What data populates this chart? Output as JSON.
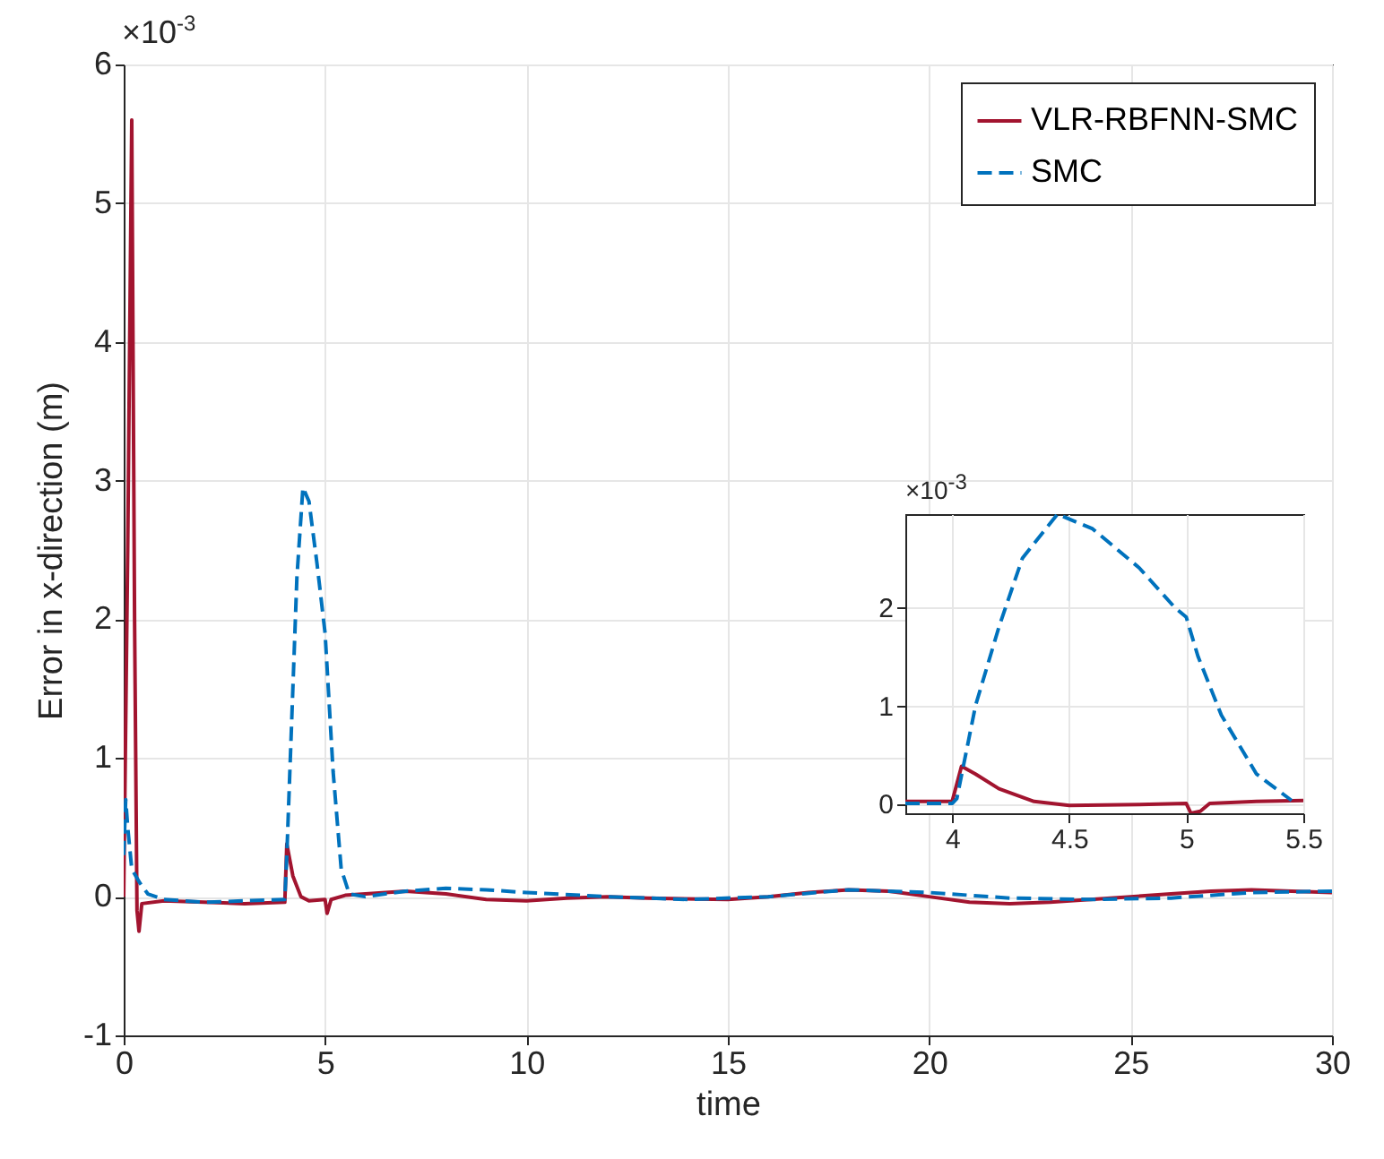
{
  "chart_data": [
    {
      "type": "line",
      "xlabel": "time",
      "ylabel": "Error in x-direction (m)",
      "annotations": [
        "×10$^{-3}$"
      ],
      "xlim": [
        0,
        30
      ],
      "xticks": [
        0,
        5,
        10,
        15,
        20,
        25,
        30
      ],
      "ylim": [
        -1,
        6
      ],
      "yticks": [
        -1,
        0,
        1,
        2,
        3,
        4,
        5,
        6
      ],
      "grid": true,
      "legend": "top right",
      "series": [
        {
          "name": "VLR-RBFNN-SMC",
          "color": "#a2142f",
          "line_style": "solid",
          "x": [
            0,
            0.1,
            0.2,
            0.27,
            0.33,
            0.38,
            0.45,
            1,
            2,
            3,
            4,
            4.05,
            4.2,
            4.4,
            4.6,
            5,
            5.05,
            5.15,
            5.5,
            6,
            7,
            8,
            9,
            10,
            11,
            12,
            13,
            15,
            16,
            17,
            18,
            19,
            20,
            21,
            22,
            23,
            24,
            25,
            26,
            27,
            28,
            29,
            30
          ],
          "values": [
            0,
            2.5,
            5.6,
            2,
            -0.1,
            -0.25,
            -0.05,
            -0.03,
            -0.04,
            -0.05,
            -0.04,
            0.38,
            0.15,
            0,
            -0.03,
            -0.02,
            -0.12,
            -0.02,
            0.01,
            0.02,
            0.04,
            0.02,
            -0.02,
            -0.03,
            -0.01,
            0,
            -0.01,
            -0.02,
            0,
            0.03,
            0.05,
            0.04,
            0,
            -0.04,
            -0.05,
            -0.04,
            -0.02,
            0,
            0.02,
            0.04,
            0.05,
            0.04,
            0.03
          ]
        },
        {
          "name": "SMC",
          "color": "#0072bd",
          "line_style": "dashed",
          "x": [
            0,
            0.05,
            0.1,
            0.2,
            0.4,
            0.6,
            1,
            2,
            4,
            4.05,
            4.2,
            4.3,
            4.45,
            4.6,
            4.8,
            5,
            5.2,
            5.4,
            5.6,
            6,
            7,
            8,
            9,
            10,
            12,
            14,
            16,
            18,
            20,
            22,
            24,
            26,
            28,
            30
          ],
          "values": [
            0.3,
            0.7,
            0.5,
            0.2,
            0.1,
            0.02,
            -0.02,
            -0.04,
            -0.02,
            0.3,
            1.5,
            2.3,
            2.95,
            2.85,
            2.4,
            1.9,
            0.9,
            0.2,
            0.02,
            0,
            0.04,
            0.06,
            0.05,
            0.03,
            0,
            -0.02,
            0,
            0.05,
            0.03,
            -0.01,
            -0.02,
            -0.01,
            0.03,
            0.04
          ]
        }
      ]
    },
    {
      "type": "line",
      "annotations": [
        "×10$^{-3}$"
      ],
      "xlim": [
        3.8,
        5.5
      ],
      "xticks": [
        4,
        4.5,
        5,
        5.5
      ],
      "ylim": [
        -0.1,
        2.95
      ],
      "yticks": [
        0,
        1,
        2
      ],
      "grid": true,
      "series": [
        {
          "color": "#a2142f",
          "line_style": "solid",
          "x": [
            3.8,
            4,
            4.04,
            4.1,
            4.2,
            4.35,
            4.5,
            4.8,
            5,
            5.02,
            5.06,
            5.1,
            5.3,
            5.5
          ],
          "values": [
            0.02,
            0.02,
            0.38,
            0.3,
            0.15,
            0.02,
            -0.02,
            -0.01,
            0,
            -0.1,
            -0.08,
            0,
            0.02,
            0.03
          ]
        },
        {
          "color": "#0072bd",
          "line_style": "dashed",
          "x": [
            3.8,
            4,
            4.02,
            4.1,
            4.2,
            4.3,
            4.45,
            4.6,
            4.8,
            4.95,
            5,
            5.05,
            5.15,
            5.3,
            5.45
          ],
          "values": [
            0,
            0,
            0.05,
            1.0,
            1.8,
            2.5,
            2.95,
            2.8,
            2.4,
            2.0,
            1.9,
            1.5,
            0.9,
            0.3,
            0.03
          ]
        }
      ]
    }
  ]
}
